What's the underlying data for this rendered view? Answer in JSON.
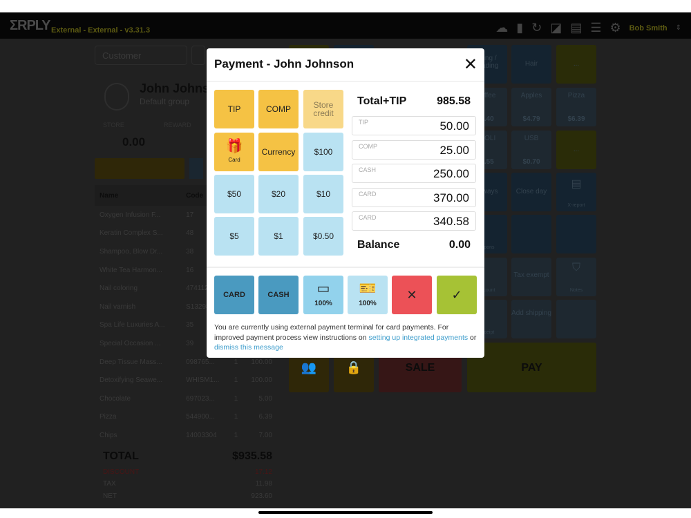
{
  "topbar": {
    "logo": "ΣRPLY",
    "version": "External - External - v3.31.3",
    "user": "Bob Smith"
  },
  "customer": {
    "search_placeholder": "Customer",
    "name": "John Johnson",
    "group": "Default group",
    "store_label": "STORE",
    "reward_label": "REWARD",
    "store_value": "0.00"
  },
  "cart": {
    "headers": [
      "Name",
      "Code",
      "",
      ""
    ],
    "rows": [
      [
        "Oxygen Infusion F...",
        "17",
        "",
        ""
      ],
      [
        "Keratin Complex S...",
        "48",
        "",
        ""
      ],
      [
        "Shampoo, Blow Dr...",
        "38",
        "",
        ""
      ],
      [
        "White Tea Harmon...",
        "16",
        "",
        ""
      ],
      [
        "Nail coloring",
        "4741122...",
        "",
        ""
      ],
      [
        "Nail varnish",
        "S132985...",
        "",
        ""
      ],
      [
        "Spa Life Luxuries A...",
        "35",
        "",
        ""
      ],
      [
        "Special Occasion ...",
        "39",
        "",
        ""
      ],
      [
        "Deep Tissue Mass...",
        "098765...",
        "1",
        "100.00"
      ],
      [
        "Detoxifying Seawe...",
        "WHISM1...",
        "1",
        "100.00"
      ],
      [
        "Chocolate",
        "697023...",
        "1",
        "5.00"
      ],
      [
        "Pizza",
        "544900...",
        "1",
        "6.39"
      ],
      [
        "Chips",
        "14003304",
        "1",
        "7.00"
      ]
    ],
    "total_label": "TOTAL",
    "total": "$935.58",
    "discount_label": "DISCOUNT",
    "discount": "17.12",
    "tax_label": "TAX",
    "tax": "11.98",
    "net_label": "NET",
    "net": "923.60"
  },
  "tiles": {
    "t1": "...ing / ...ading",
    "hair": "Hair",
    "more1": "...",
    "coffee": "...ffee",
    "coffee_price": "...40",
    "apples": "Apples",
    "apples_price": "$4.79",
    "pizza": "Pizza",
    "pizza_price": "$6.39",
    "oli": "...OLI",
    "oli_price": "...55",
    "usb": "USB",
    "usb_price": "$0.70",
    "more2": "...",
    "ways": "...ways",
    "close_day": "Close day",
    "xreport": "X-report",
    "coupons": "...pons",
    "discount": "...count",
    "tax_exempt": "Tax exempt",
    "notes": "Notes",
    "receipt": "...ceipt",
    "add_shipping": "Add shipping",
    "sale": "SALE",
    "pay": "PAY"
  },
  "modal": {
    "title": "Payment - John Johnson",
    "buttons": {
      "tip": "TIP",
      "comp": "COMP",
      "store_credit": "Store credit",
      "gift_card": "Card",
      "currency": "Currency",
      "d100": "$100",
      "d50": "$50",
      "d20": "$20",
      "d10": "$10",
      "d5": "$5",
      "d1": "$1",
      "d050": "$0.50"
    },
    "total_label": "Total+TIP",
    "total": "985.58",
    "payments": [
      {
        "label": "TIP",
        "value": "50.00"
      },
      {
        "label": "COMP",
        "value": "25.00"
      },
      {
        "label": "CASH",
        "value": "250.00"
      },
      {
        "label": "CARD",
        "value": "370.00"
      },
      {
        "label": "CARD",
        "value": "340.58"
      }
    ],
    "balance_label": "Balance",
    "balance": "0.00",
    "actions": {
      "card": "CARD",
      "cash": "CASH",
      "card_pct": "100%",
      "cash_pct": "100%"
    },
    "message": {
      "text1": "You are currently using external payment terminal for card payments. For improved payment process view instructions on ",
      "link1": "setting up integrated payments",
      "text2": " or ",
      "link2": "dismiss this message"
    }
  },
  "colors": {
    "tip": "#f5c244",
    "denom": "#b9e2f2",
    "card": "#4a9ac0",
    "cancel": "#ec5157",
    "confirm": "#a6c235",
    "link": "#3d9dcc"
  }
}
